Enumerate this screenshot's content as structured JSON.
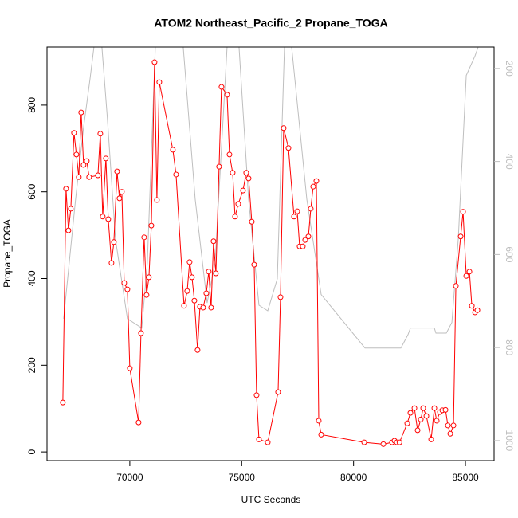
{
  "chart_data": {
    "type": "line",
    "title": "ATOM2 Northeast_Pacific_2 Propane_TOGA",
    "xlabel": "UTC Seconds",
    "ylabel": "Propane_TOGA",
    "xlim": [
      66300,
      86280
    ],
    "xticks": [
      70000,
      75000,
      80000,
      85000
    ],
    "ylim": [
      -20,
      934
    ],
    "yticks": [
      0,
      200,
      400,
      600,
      800
    ],
    "y2lim": [
      1043,
      154
    ],
    "y2ticks": [
      200,
      400,
      600,
      800,
      1000
    ],
    "y2_inverted": true,
    "series": [
      {
        "color": "#ff0000",
        "markers": true,
        "x": [
          67007,
          67150,
          67257,
          67364,
          67506,
          67613,
          67720,
          67827,
          67934,
          68076,
          68183,
          68575,
          68682,
          68789,
          68931,
          69038,
          69181,
          69288,
          69430,
          69537,
          69644,
          69751,
          69893,
          70000,
          70392,
          70499,
          70641,
          70748,
          70855,
          70962,
          71105,
          71211,
          71318,
          71924,
          72067,
          72423,
          72565,
          72672,
          72779,
          72886,
          73028,
          73135,
          73278,
          73420,
          73527,
          73634,
          73741,
          73848,
          73990,
          74097,
          74347,
          74454,
          74596,
          74703,
          74846,
          75059,
          75202,
          75309,
          75451,
          75558,
          75665,
          75772,
          76164,
          76627,
          76734,
          76876,
          77090,
          77339,
          77482,
          77589,
          77731,
          77838,
          77981,
          78088,
          78195,
          78337,
          78444,
          78551,
          80475,
          81330,
          81722,
          81829,
          81936,
          82053,
          82399,
          82541,
          82720,
          82862,
          83005,
          83111,
          83254,
          83468,
          83610,
          83717,
          83860,
          83967,
          84109,
          84216,
          84323,
          84465,
          84572,
          84786,
          84893,
          85036,
          85178,
          85285,
          85428,
          85534
        ],
        "values": [
          114,
          607,
          511,
          561,
          736,
          686,
          634,
          783,
          662,
          671,
          634,
          638,
          734,
          543,
          677,
          537,
          436,
          484,
          647,
          585,
          600,
          390,
          375,
          193,
          68,
          274,
          495,
          362,
          403,
          522,
          899,
          581,
          853,
          697,
          640,
          337,
          371,
          438,
          403,
          349,
          235,
          335,
          333,
          366,
          416,
          333,
          486,
          412,
          658,
          842,
          824,
          686,
          644,
          543,
          572,
          603,
          644,
          631,
          531,
          432,
          131,
          29,
          22,
          138,
          357,
          747,
          701,
          543,
          555,
          474,
          474,
          489,
          497,
          561,
          612,
          625,
          72,
          40,
          22,
          18,
          22,
          26,
          22,
          22,
          66,
          90,
          101,
          50,
          75,
          101,
          83,
          29,
          101,
          72,
          92,
          96,
          97,
          61,
          42,
          61,
          383,
          497,
          554,
          406,
          416,
          337,
          322,
          327
        ]
      },
      {
        "color": "#bebebe",
        "axis": "y2",
        "x": [
          67043,
          67577,
          67933,
          68219,
          68397,
          68753,
          69002,
          69359,
          69893,
          70534,
          70784,
          71140,
          72387,
          72922,
          73456,
          73812,
          74347,
          74881,
          75309,
          75772,
          76164,
          76592,
          76912,
          77233,
          77910,
          78551,
          80511,
          82114,
          82435,
          82541,
          83610,
          83681,
          84145,
          84394,
          84679,
          85036,
          85428,
          85570,
          85748
        ],
        "values": [
          738,
          481,
          327,
          224,
          154,
          154,
          310,
          567,
          738,
          758,
          618,
          154,
          154,
          481,
          704,
          618,
          154,
          154,
          481,
          709,
          721,
          652,
          154,
          154,
          481,
          686,
          801,
          801,
          772,
          758,
          758,
          769,
          769,
          746,
          567,
          215,
          173,
          154,
          154
        ]
      }
    ]
  }
}
